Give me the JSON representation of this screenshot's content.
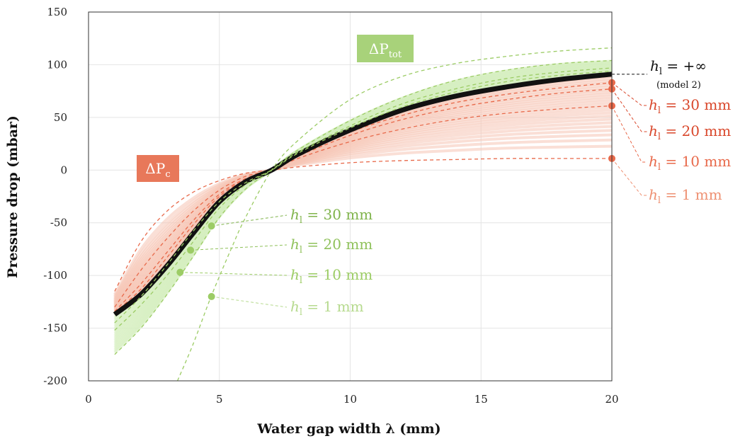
{
  "chart_data": {
    "type": "line",
    "xlabel": "Water gap width λ (mm)",
    "ylabel": "Pressure drop (mbar)",
    "xlim": [
      0,
      20
    ],
    "ylim": [
      -200,
      150
    ],
    "x_ticks": [
      0,
      5,
      10,
      15,
      20
    ],
    "y_ticks": [
      -200,
      -150,
      -100,
      -50,
      0,
      50,
      100,
      150
    ],
    "grid": true,
    "colors": {
      "model2": "#111111",
      "dP_c": "#e8694a",
      "dP_tot": "#9ccc65",
      "dP_c_fill": "#f5c4b4",
      "dP_tot_fill": "#d6eec0"
    },
    "series": [
      {
        "name": "ΔP_c, h_l = 1 mm",
        "x": [
          1,
          2,
          3,
          4,
          5,
          6,
          7,
          8,
          10,
          12,
          14,
          16,
          18,
          20
        ],
        "y": [
          -115,
          -68,
          -39,
          -21,
          -10,
          -3,
          0,
          3,
          7,
          9,
          10,
          11,
          11,
          11
        ]
      },
      {
        "name": "ΔP_c, h_l = 10 mm",
        "x": [
          1,
          2,
          3,
          4,
          5,
          6,
          7,
          8,
          10,
          12,
          14,
          16,
          18,
          20
        ],
        "y": [
          -130,
          -95,
          -65,
          -39,
          -19,
          -6,
          0,
          11,
          27,
          39,
          48,
          54,
          58,
          61
        ]
      },
      {
        "name": "ΔP_c, h_l = 20 mm",
        "x": [
          1,
          2,
          3,
          4,
          5,
          6,
          7,
          8,
          10,
          12,
          14,
          16,
          18,
          20
        ],
        "y": [
          -134,
          -108,
          -78,
          -48,
          -23,
          -8,
          0,
          13,
          33,
          48,
          59,
          67,
          73,
          77
        ]
      },
      {
        "name": "ΔP_c, h_l = 30 mm",
        "x": [
          1,
          2,
          3,
          4,
          5,
          6,
          7,
          8,
          10,
          12,
          14,
          16,
          18,
          20
        ],
        "y": [
          -135,
          -113,
          -83,
          -52,
          -25,
          -9,
          0,
          14,
          36,
          52,
          64,
          72,
          78,
          83
        ]
      },
      {
        "name": "model 2, h_l = +∞",
        "x": [
          1,
          2,
          3,
          4,
          5,
          6,
          7,
          8,
          10,
          12,
          14,
          16,
          18,
          20
        ],
        "y": [
          -137,
          -118,
          -91,
          -60,
          -30,
          -11,
          0,
          15,
          38,
          57,
          70,
          79,
          86,
          91
        ]
      },
      {
        "name": "ΔP_tot, h_l = 30 mm",
        "x": [
          1,
          2,
          3,
          4,
          5,
          6,
          7,
          8,
          10,
          12,
          14,
          16,
          18,
          20
        ],
        "y": [
          -145,
          -120,
          -90,
          -58,
          -30,
          -12,
          0,
          16,
          40,
          60,
          74,
          84,
          90,
          94
        ]
      },
      {
        "name": "ΔP_tot, h_l = 20 mm",
        "x": [
          1,
          2,
          3,
          4,
          5,
          6,
          7,
          8,
          10,
          12,
          14,
          16,
          18,
          20
        ],
        "y": [
          -152,
          -128,
          -100,
          -68,
          -36,
          -14,
          0,
          17,
          42,
          63,
          77,
          87,
          93,
          97
        ]
      },
      {
        "name": "ΔP_tot, h_l = 10 mm",
        "x": [
          1,
          2,
          3,
          4,
          5,
          6,
          7,
          8,
          10,
          12,
          14,
          16,
          18,
          20
        ],
        "y": [
          -175,
          -150,
          -118,
          -82,
          -45,
          -18,
          0,
          19,
          47,
          69,
          85,
          95,
          101,
          104
        ]
      },
      {
        "name": "ΔP_tot, h_l = 1 mm",
        "x": [
          3.4,
          4,
          4.7,
          5.5,
          6,
          7,
          8,
          10,
          12,
          14,
          16,
          18,
          20
        ],
        "y": [
          -200,
          -165,
          -119,
          -72,
          -45,
          0,
          28,
          67,
          89,
          101,
          108,
          113,
          116
        ]
      }
    ],
    "markers": [
      {
        "series": "ΔP_c, h_l = 30 mm",
        "x": 20,
        "y": 83
      },
      {
        "series": "ΔP_c, h_l = 20 mm",
        "x": 20,
        "y": 77
      },
      {
        "series": "ΔP_c, h_l = 10 mm",
        "x": 20,
        "y": 61
      },
      {
        "series": "ΔP_c, h_l = 1 mm",
        "x": 20,
        "y": 11
      },
      {
        "series": "ΔP_tot, h_l = 30 mm",
        "x": 4.7,
        "y": -53
      },
      {
        "series": "ΔP_tot, h_l = 20 mm",
        "x": 3.9,
        "y": -76
      },
      {
        "series": "ΔP_tot, h_l = 10 mm",
        "x": 3.5,
        "y": -97
      },
      {
        "series": "ΔP_tot, h_l = 1 mm",
        "x": 4.7,
        "y": -120
      }
    ],
    "annotations": {
      "dP_tot_label": {
        "base": "ΔP",
        "sub": "tot"
      },
      "dP_c_label": {
        "base": "ΔP",
        "sub": "c"
      },
      "model2": {
        "var": "h",
        "sub": "l",
        "rhs": " = +∞",
        "note": "(model 2)"
      },
      "right_labels": [
        {
          "var": "h",
          "sub": "l",
          "rhs": " = 30 mm"
        },
        {
          "var": "h",
          "sub": "l",
          "rhs": " = 20 mm"
        },
        {
          "var": "h",
          "sub": "l",
          "rhs": " = 10 mm"
        },
        {
          "var": "h",
          "sub": "l",
          "rhs": " = 1 mm"
        }
      ],
      "left_labels": [
        {
          "var": "h",
          "sub": "l",
          "rhs": " = 30 mm"
        },
        {
          "var": "h",
          "sub": "l",
          "rhs": " = 20 mm"
        },
        {
          "var": "h",
          "sub": "l",
          "rhs": " = 10 mm"
        },
        {
          "var": "h",
          "sub": "l",
          "rhs": " = 1 mm"
        }
      ]
    }
  }
}
